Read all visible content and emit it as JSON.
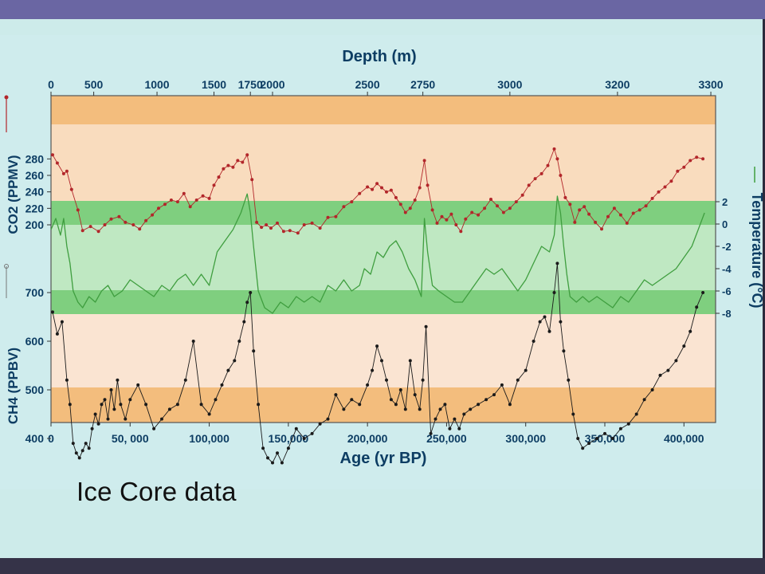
{
  "slide": {
    "caption": "Ice Core data",
    "colors": {
      "top_band": "#6a66a3",
      "bottom_band": "#353348",
      "background": "#cdebea"
    }
  },
  "chart_data": {
    "type": "line",
    "title": "",
    "xlabel": "Age (yr BP)",
    "x_range": [
      0,
      420000
    ],
    "x_ticks": [
      {
        "value": 0,
        "label": "0"
      },
      {
        "value": 50000,
        "label": "50, 000"
      },
      {
        "value": 100000,
        "label": "100,000"
      },
      {
        "value": 150000,
        "label": "150,000"
      },
      {
        "value": 200000,
        "label": "200,000"
      },
      {
        "value": 250000,
        "label": "250,000"
      },
      {
        "value": 300000,
        "label": "300,000"
      },
      {
        "value": 350000,
        "label": "350,000"
      },
      {
        "value": 400000,
        "label": "400,000"
      }
    ],
    "top_axis": {
      "label": "Depth (m)",
      "ticks": [
        {
          "age": 0,
          "label": "0"
        },
        {
          "age": 27000,
          "label": "500"
        },
        {
          "age": 67000,
          "label": "1000"
        },
        {
          "age": 103000,
          "label": "1500"
        },
        {
          "age": 126000,
          "label": "1750"
        },
        {
          "age": 140000,
          "label": "2000"
        },
        {
          "age": 200000,
          "label": "2500"
        },
        {
          "age": 235000,
          "label": "2750"
        },
        {
          "age": 290000,
          "label": "3000"
        },
        {
          "age": 358000,
          "label": "3200"
        },
        {
          "age": 417000,
          "label": "3300"
        }
      ]
    },
    "bands": {
      "co2": {
        "colors": [
          "#f3bd7d",
          "#f9dcbe"
        ]
      },
      "temperature": {
        "colors": [
          "#7fcf7f",
          "#bfe8c2"
        ]
      },
      "ch4": {
        "colors": [
          "#f3bd7d",
          "#fae4d2"
        ]
      }
    },
    "series": [
      {
        "name": "CO2",
        "axis_label": "CO2 (PPMV)",
        "units": "ppmv",
        "color": "#b2262a",
        "ticks": [
          200,
          220,
          240,
          260,
          280
        ],
        "x": [
          1000,
          4000,
          8000,
          10000,
          13000,
          17000,
          20000,
          25000,
          30000,
          34000,
          38000,
          43000,
          47000,
          52000,
          56000,
          60000,
          64000,
          68000,
          72000,
          76000,
          80000,
          84000,
          88000,
          92000,
          96000,
          100000,
          103000,
          106000,
          109000,
          112000,
          115000,
          118000,
          121000,
          124000,
          127000,
          130000,
          133000,
          136000,
          139000,
          143000,
          147000,
          151000,
          156000,
          160000,
          165000,
          170000,
          175000,
          180000,
          185000,
          190000,
          195000,
          200000,
          203000,
          206000,
          209000,
          212000,
          215000,
          218000,
          221000,
          224000,
          227000,
          230000,
          233000,
          236000,
          238000,
          241000,
          244000,
          247000,
          250000,
          253000,
          256000,
          259000,
          262000,
          266000,
          270000,
          274000,
          278000,
          282000,
          286000,
          290000,
          294000,
          298000,
          302000,
          306000,
          310000,
          314000,
          318000,
          320000,
          322000,
          325000,
          328000,
          331000,
          334000,
          337000,
          340000,
          344000,
          348000,
          352000,
          356000,
          360000,
          364000,
          368000,
          372000,
          376000,
          380000,
          384000,
          388000,
          392000,
          396000,
          400000,
          404000,
          408000,
          412000
        ],
        "values": [
          285,
          275,
          262,
          265,
          243,
          218,
          193,
          198,
          192,
          200,
          207,
          210,
          203,
          200,
          195,
          205,
          212,
          220,
          225,
          230,
          228,
          238,
          222,
          230,
          235,
          232,
          248,
          258,
          268,
          272,
          270,
          278,
          276,
          285,
          255,
          203,
          197,
          200,
          196,
          202,
          192,
          193,
          190,
          200,
          202,
          196,
          209,
          210,
          222,
          228,
          238,
          246,
          243,
          250,
          245,
          240,
          242,
          233,
          225,
          215,
          220,
          230,
          245,
          278,
          248,
          218,
          202,
          210,
          206,
          213,
          200,
          192,
          207,
          215,
          212,
          220,
          231,
          223,
          215,
          220,
          228,
          236,
          248,
          256,
          262,
          272,
          292,
          280,
          260,
          233,
          225,
          203,
          218,
          222,
          213,
          203,
          195,
          210,
          220,
          212,
          202,
          214,
          218,
          223,
          232,
          240,
          246,
          253,
          265,
          270,
          278,
          282,
          280
        ]
      },
      {
        "name": "Temperature",
        "axis_label": "Temperature (°C)",
        "units": "°C",
        "color": "#3f9e3f",
        "ticks": [
          2,
          0,
          -2,
          -4,
          -6,
          -8
        ],
        "x": [
          0,
          3000,
          6000,
          8000,
          10000,
          12000,
          14000,
          17000,
          20000,
          24000,
          28000,
          32000,
          36000,
          40000,
          45000,
          50000,
          55000,
          60000,
          65000,
          70000,
          75000,
          80000,
          85000,
          90000,
          95000,
          100000,
          105000,
          110000,
          115000,
          120000,
          124000,
          126000,
          128000,
          131000,
          135000,
          140000,
          145000,
          150000,
          155000,
          160000,
          165000,
          170000,
          175000,
          180000,
          185000,
          190000,
          195000,
          198000,
          202000,
          206000,
          210000,
          214000,
          218000,
          222000,
          226000,
          230000,
          234000,
          236000,
          238000,
          241000,
          245000,
          250000,
          255000,
          260000,
          265000,
          270000,
          275000,
          280000,
          285000,
          290000,
          295000,
          300000,
          305000,
          310000,
          315000,
          318000,
          320000,
          322000,
          324000,
          326000,
          328000,
          332000,
          336000,
          340000,
          345000,
          350000,
          355000,
          360000,
          365000,
          370000,
          375000,
          380000,
          385000,
          390000,
          395000,
          400000,
          405000,
          409000,
          413000
        ],
        "values": [
          -0.5,
          0.5,
          -1,
          0.5,
          -2,
          -3.5,
          -6,
          -7,
          -7.5,
          -6.5,
          -7,
          -6,
          -5.5,
          -6.5,
          -6,
          -5,
          -5.5,
          -6,
          -6.5,
          -5.5,
          -6,
          -5,
          -4.5,
          -5.5,
          -4.5,
          -5.5,
          -2.5,
          -1.5,
          -0.5,
          1,
          2.7,
          1,
          -2,
          -6,
          -7.5,
          -8,
          -7,
          -7.5,
          -6.5,
          -7,
          -6.5,
          -7,
          -5.5,
          -6,
          -5,
          -6,
          -5.5,
          -4,
          -4.5,
          -2.5,
          -3,
          -2,
          -1.5,
          -2.5,
          -4,
          -5,
          -6.5,
          0.5,
          -2.5,
          -5.5,
          -6,
          -6.5,
          -7,
          -7,
          -6,
          -5,
          -4,
          -4.5,
          -4,
          -5,
          -6,
          -5,
          -3.5,
          -2,
          -2.5,
          -1,
          2.5,
          1,
          -2,
          -4.5,
          -6.5,
          -7,
          -6.5,
          -7,
          -6.5,
          -7,
          -7.5,
          -6.5,
          -7,
          -6,
          -5,
          -5.5,
          -5,
          -4.5,
          -4,
          -3,
          -2,
          -0.5,
          1
        ]
      },
      {
        "name": "CH4",
        "axis_label": "CH4 (PPBV)",
        "units": "ppbv",
        "color": "#1a1a1a",
        "ticks": [
          400,
          500,
          600,
          700
        ],
        "x": [
          1000,
          4000,
          7000,
          10000,
          12000,
          14000,
          16000,
          18000,
          20000,
          22000,
          24000,
          26000,
          28000,
          30000,
          32000,
          34000,
          36000,
          38000,
          40000,
          42000,
          44000,
          47000,
          50000,
          55000,
          60000,
          65000,
          70000,
          75000,
          80000,
          85000,
          90000,
          95000,
          100000,
          104000,
          108000,
          112000,
          116000,
          119000,
          122000,
          124000,
          126000,
          128000,
          131000,
          134000,
          137000,
          140000,
          143000,
          146000,
          150000,
          155000,
          160000,
          165000,
          170000,
          175000,
          180000,
          185000,
          190000,
          195000,
          200000,
          203000,
          206000,
          209000,
          212000,
          215000,
          218000,
          221000,
          224000,
          227000,
          230000,
          233000,
          235000,
          237000,
          240000,
          243000,
          246000,
          249000,
          252000,
          255000,
          258000,
          261000,
          265000,
          270000,
          275000,
          280000,
          285000,
          290000,
          295000,
          300000,
          305000,
          309000,
          312000,
          315000,
          318000,
          320000,
          322000,
          324000,
          327000,
          330000,
          333000,
          336000,
          340000,
          345000,
          350000,
          355000,
          360000,
          365000,
          370000,
          375000,
          380000,
          385000,
          390000,
          395000,
          400000,
          404000,
          408000,
          412000
        ],
        "values": [
          660,
          615,
          640,
          520,
          470,
          390,
          370,
          360,
          375,
          390,
          380,
          420,
          450,
          430,
          470,
          480,
          440,
          500,
          460,
          520,
          470,
          440,
          480,
          510,
          470,
          420,
          440,
          460,
          470,
          520,
          600,
          470,
          450,
          480,
          510,
          540,
          560,
          600,
          640,
          680,
          700,
          580,
          470,
          380,
          360,
          350,
          370,
          350,
          380,
          420,
          400,
          410,
          430,
          440,
          490,
          460,
          480,
          470,
          510,
          540,
          590,
          560,
          520,
          480,
          470,
          500,
          460,
          560,
          490,
          460,
          520,
          630,
          410,
          440,
          460,
          470,
          420,
          440,
          420,
          450,
          460,
          470,
          480,
          490,
          510,
          470,
          520,
          540,
          600,
          640,
          650,
          620,
          700,
          760,
          640,
          580,
          520,
          450,
          400,
          380,
          390,
          400,
          410,
          400,
          420,
          430,
          450,
          480,
          500,
          530,
          540,
          560,
          590,
          620,
          670,
          700
        ]
      }
    ]
  }
}
